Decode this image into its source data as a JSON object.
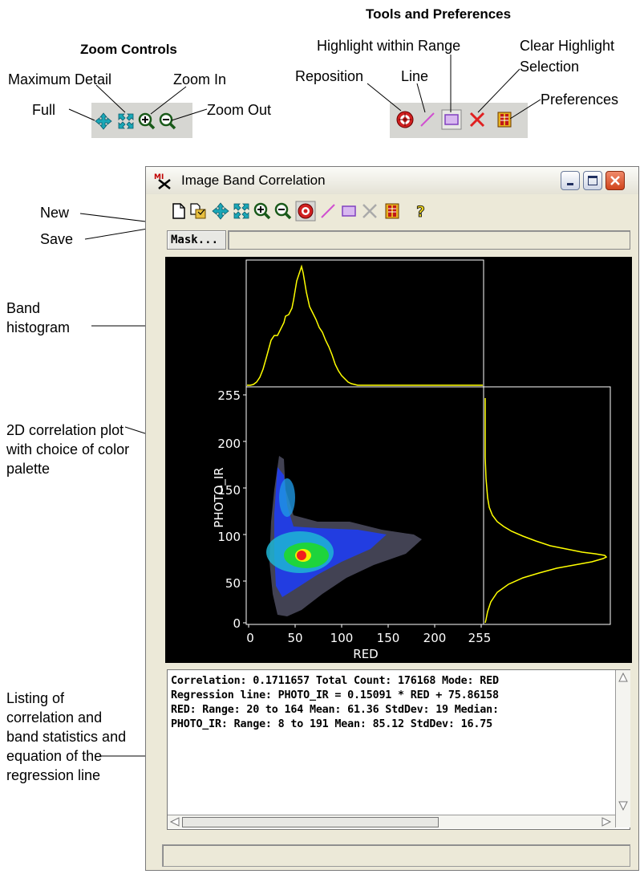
{
  "annotations": {
    "zoom_heading": "Zoom Controls",
    "tools_heading": "Tools and Preferences",
    "zoom": {
      "maximum_detail": "Maximum Detail",
      "zoom_in": "Zoom In",
      "full": "Full",
      "zoom_out": "Zoom Out"
    },
    "tools": {
      "highlight_within_range": "Highlight within Range",
      "clear_highlight_line1": "Clear Highlight",
      "clear_highlight_line2": "Selection",
      "reposition": "Reposition",
      "line": "Line",
      "preferences": "Preferences"
    },
    "window_callouts": {
      "new": "New",
      "save": "Save",
      "band_histogram": "Band histogram",
      "correlation_plot": "2D correlation plot with choice of color palette",
      "listing": "Listing of correlation and band statistics and equation of the regression line"
    }
  },
  "window": {
    "title": "Image Band Correlation",
    "mask_button": "Mask...",
    "toolbar_icons": [
      "new-icon",
      "save-icon",
      "full-icon",
      "maximum-detail-icon",
      "zoom-in-icon",
      "zoom-out-icon",
      "reposition-icon",
      "line-icon",
      "highlight-range-icon",
      "clear-highlight-icon",
      "preferences-icon",
      "help-icon"
    ],
    "plot": {
      "x_label": "RED",
      "y_label": "PHOTO_IR",
      "x_ticks": [
        "0",
        "50",
        "100",
        "150",
        "200",
        "255"
      ],
      "y_ticks": [
        "0",
        "50",
        "100",
        "150",
        "200",
        "255"
      ],
      "axis_color": "#ffffff",
      "histogram_color": "#ffff00",
      "background": "#000000"
    },
    "stats_lines": [
      "Correlation: 0.1711657  Total Count: 176168  Mode: RED",
      "Regression line:  PHOTO_IR = 0.15091 * RED + 75.86158",
      "RED:  Range: 20 to 164  Mean: 61.36  StdDev: 19  Median:",
      "PHOTO_IR:  Range: 8 to 191  Mean: 85.12  StdDev: 16.75"
    ]
  },
  "colors": {
    "window_bg": "#ece9d8",
    "close_button": "#d0441c",
    "icon_cyan": "#1aa8b8",
    "icon_red": "#e02020",
    "icon_magenta": "#d050d0"
  }
}
